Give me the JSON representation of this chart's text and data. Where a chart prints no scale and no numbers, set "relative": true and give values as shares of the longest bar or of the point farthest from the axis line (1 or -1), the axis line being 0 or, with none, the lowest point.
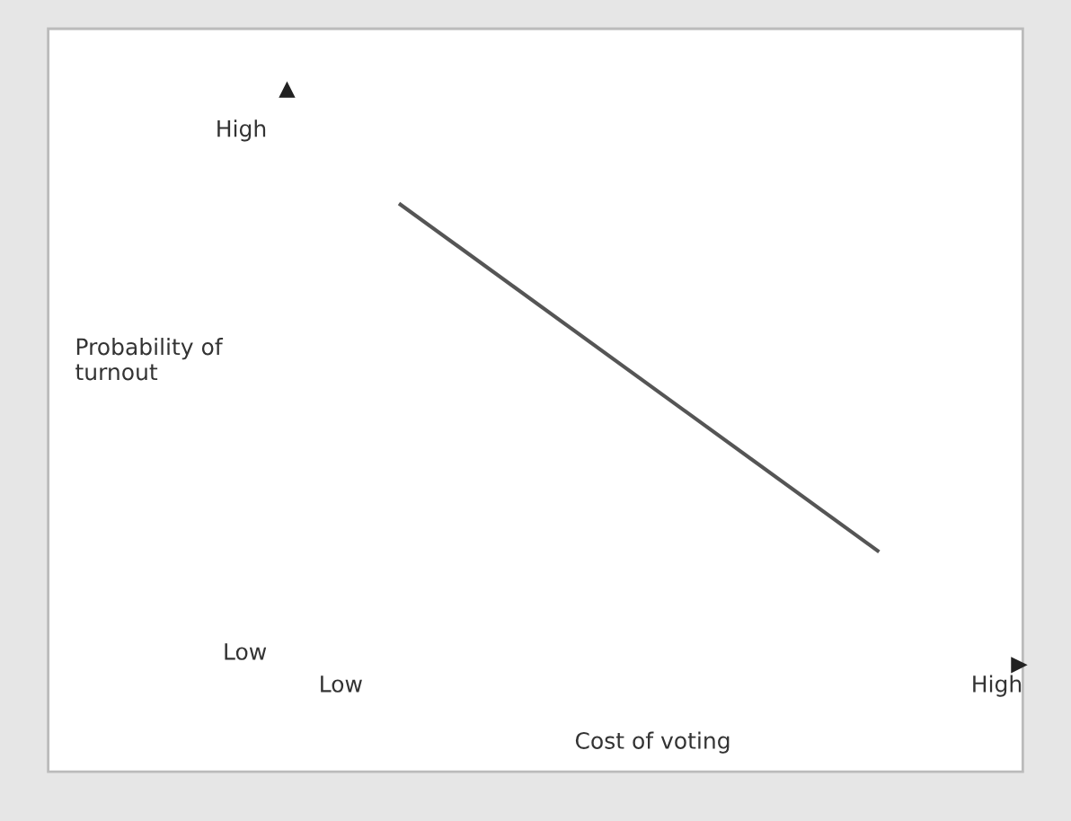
{
  "chart_data": {
    "type": "line",
    "relative": true,
    "xlabel": "Cost of voting",
    "ylabel": "Probability of\nturnout",
    "categories": [
      "Low",
      null,
      null,
      null,
      null,
      null,
      null,
      null,
      null,
      null,
      null,
      "High"
    ],
    "values": [
      null,
      1,
      null,
      null,
      null,
      null,
      null,
      null,
      null,
      0,
      null,
      null
    ],
    "color": "#555555",
    "annotations": [
      "High",
      "Low"
    ],
    "tick_labels": "x",
    "marker": "none",
    "line_style": "solid"
  }
}
